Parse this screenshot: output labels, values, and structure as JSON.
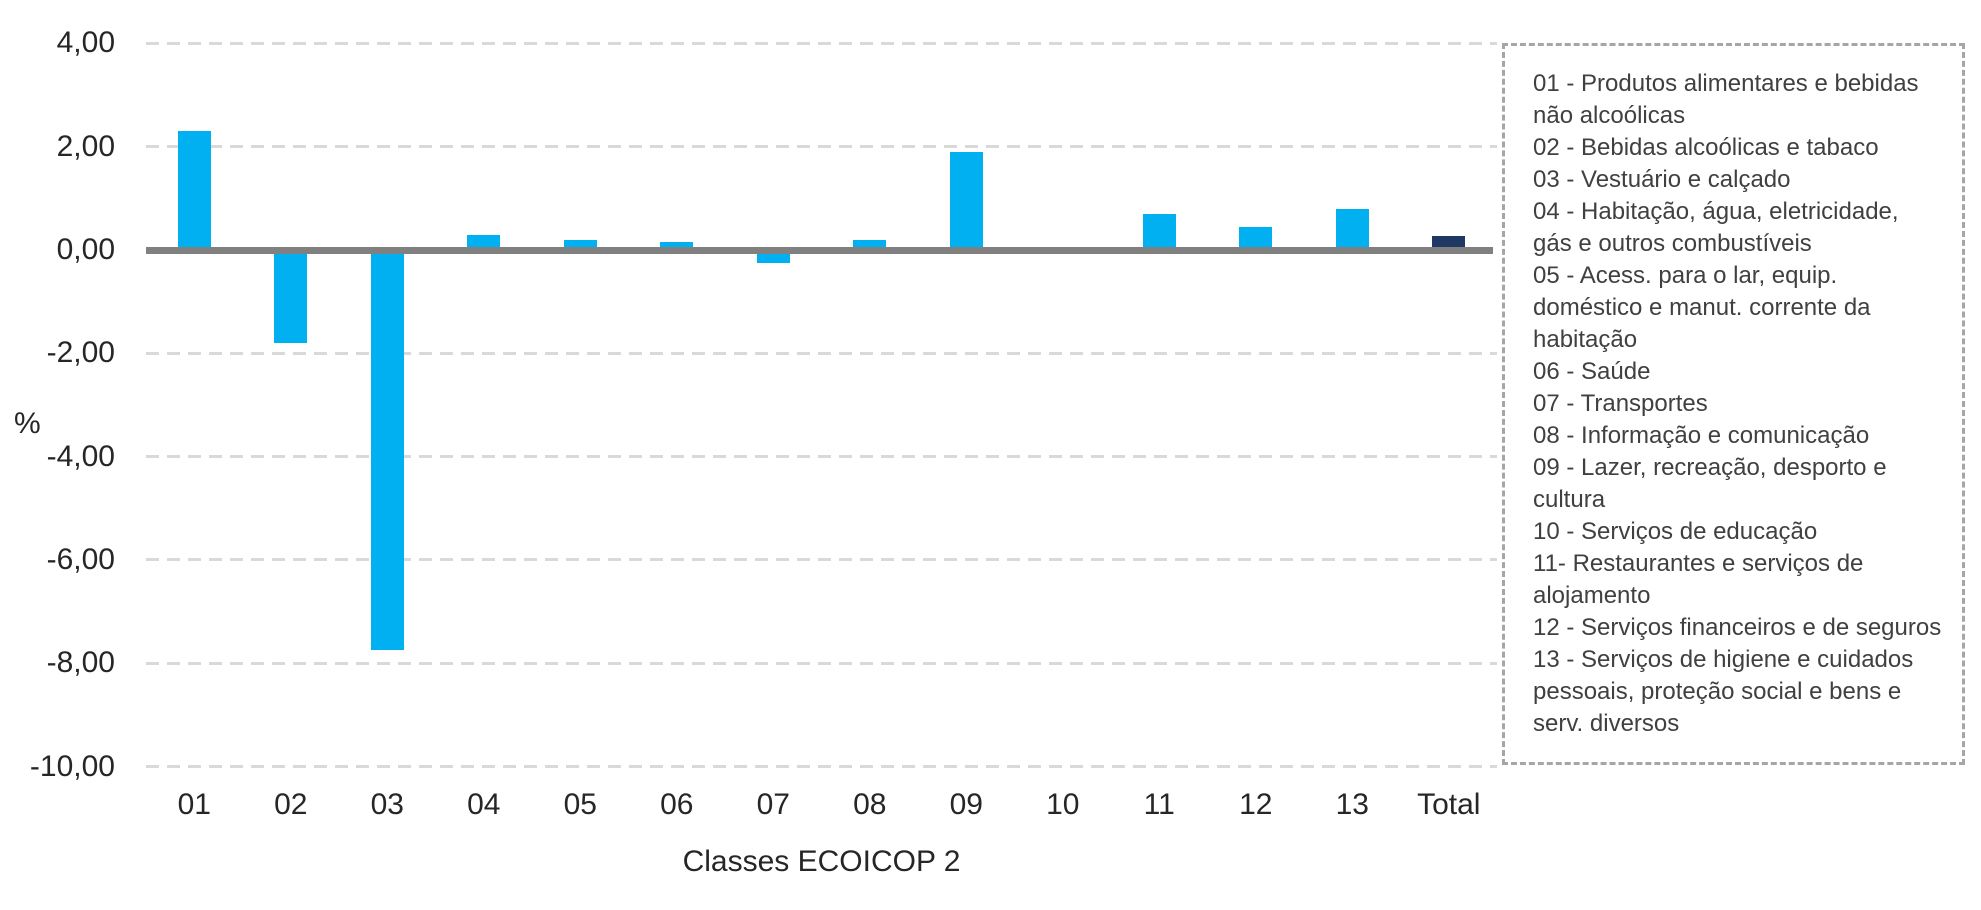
{
  "chart_data": {
    "type": "bar",
    "title": "",
    "xlabel": "Classes ECOICOP 2",
    "ylabel": "%",
    "categories": [
      "01",
      "02",
      "03",
      "04",
      "05",
      "06",
      "07",
      "08",
      "09",
      "10",
      "11",
      "12",
      "13",
      "Total"
    ],
    "values": [
      2.3,
      -1.8,
      -7.75,
      0.3,
      0.2,
      0.15,
      -0.25,
      0.2,
      1.9,
      0,
      0.7,
      0.45,
      0.8,
      0.27
    ],
    "ylim": [
      -10,
      4
    ],
    "yticks": [
      {
        "value": 4,
        "label": "4,00"
      },
      {
        "value": 2,
        "label": "2,00"
      },
      {
        "value": 0,
        "label": "0,00"
      },
      {
        "value": -2,
        "label": "-2,00"
      },
      {
        "value": -4,
        "label": "-4,00"
      },
      {
        "value": -6,
        "label": "-6,00"
      },
      {
        "value": -8,
        "label": "-8,00"
      },
      {
        "value": -10,
        "label": "-10,00"
      }
    ],
    "grid": "horizontal dashed gridlines, zero axis solid gray",
    "legend_position": "right",
    "colors": {
      "bar": "#00b0f0",
      "total_bar": "#1f3864",
      "axis_line": "#808080",
      "gridline": "#d9d9d9",
      "legend_border": "#a6a6a6",
      "text": "#262626"
    },
    "legend_items": [
      "01 - Produtos alimentares e bebidas não alcoólicas",
      "02 - Bebidas alcoólicas e tabaco",
      "03 - Vestuário e calçado",
      "04 - Habitação, água, eletricidade, gás e outros combustíveis",
      "05 - Acess. para o lar, equip. doméstico e manut. corrente da habitação",
      "06 - Saúde",
      "07 - Transportes",
      "08 - Informação e comunicação",
      "09 - Lazer, recreação, desporto e cultura",
      "10 - Serviços de educação",
      "11- Restaurantes e serviços de alojamento",
      "12 - Serviços financeiros e de seguros",
      "13 - Serviços de higiene e cuidados pessoais, proteção social e bens e serv. diversos"
    ]
  }
}
